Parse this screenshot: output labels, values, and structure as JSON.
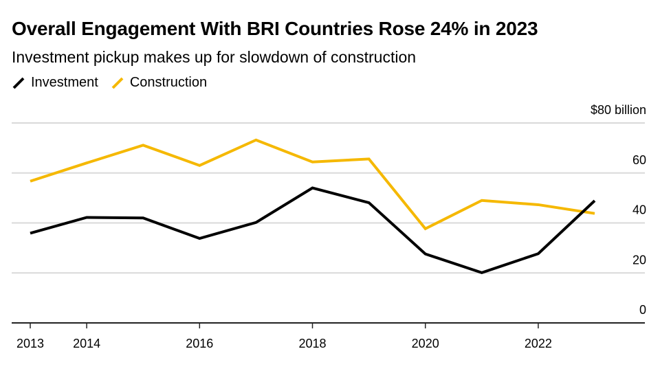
{
  "header": {
    "title": "Overall Engagement With BRI Countries Rose 24% in 2023",
    "subtitle": "Investment pickup makes up for slowdown of construction"
  },
  "legend": [
    {
      "label": "Investment",
      "color": "#000000",
      "icon": "diagonal-line-icon"
    },
    {
      "label": "Construction",
      "color": "#f5b800",
      "icon": "diagonal-line-icon"
    }
  ],
  "chart_data": {
    "type": "line",
    "title": "Overall Engagement With BRI Countries Rose 24% in 2023",
    "subtitle": "Investment pickup makes up for slowdown of construction",
    "xlabel": "",
    "ylabel": "$ billion",
    "x": [
      2013,
      2014,
      2015,
      2016,
      2017,
      2018,
      2019,
      2020,
      2021,
      2022,
      2023
    ],
    "series": [
      {
        "name": "Investment",
        "color": "#000000",
        "values": [
          35.9,
          42.2,
          42.0,
          33.8,
          40.2,
          54.0,
          48.1,
          27.6,
          20.1,
          27.7,
          48.9
        ]
      },
      {
        "name": "Construction",
        "color": "#f5b800",
        "values": [
          56.7,
          64.0,
          71.1,
          63.0,
          73.2,
          64.4,
          65.6,
          37.7,
          49.0,
          47.3,
          43.8
        ]
      }
    ],
    "ylim": [
      0,
      80
    ],
    "xlim": [
      2013,
      2023
    ],
    "y_ticks": [
      {
        "value": 80,
        "label": "$80 billion"
      },
      {
        "value": 60,
        "label": "60"
      },
      {
        "value": 40,
        "label": "40"
      },
      {
        "value": 20,
        "label": "20"
      },
      {
        "value": 0,
        "label": "0"
      }
    ],
    "x_ticks": [
      {
        "value": 2013,
        "label": "2013"
      },
      {
        "value": 2014,
        "label": "2014"
      },
      {
        "value": 2016,
        "label": "2016"
      },
      {
        "value": 2018,
        "label": "2018"
      },
      {
        "value": 2020,
        "label": "2020"
      },
      {
        "value": 2022,
        "label": "2022"
      }
    ],
    "grid": true,
    "legend_position": "top-left"
  }
}
